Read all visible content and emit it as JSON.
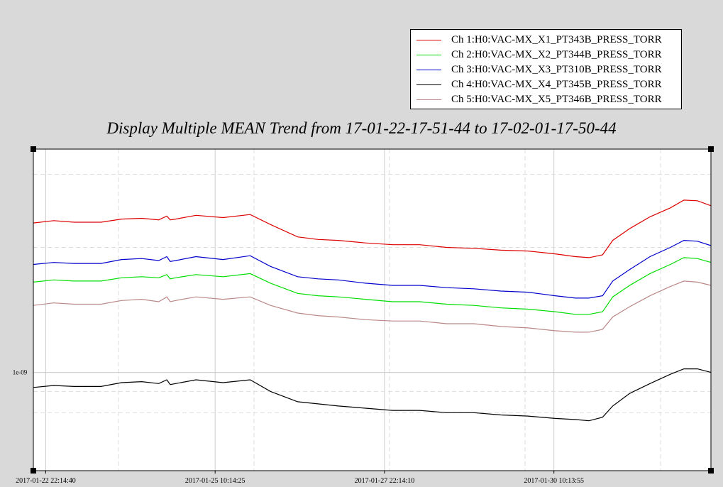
{
  "chart_data": {
    "type": "line",
    "title": "Display Multiple MEAN Trend from 17-01-22-17-51-44 to 17-02-01-17-50-44",
    "xlabel": "",
    "ylabel": "",
    "x_range": [
      "2017-01-22 17:51:44",
      "2017-02-01 17:50:44"
    ],
    "x_ticks": [
      "2017-01-22 22:14:40",
      "2017-01-25 10:14:25",
      "2017-01-27 22:14:10",
      "2017-01-30 10:13:55"
    ],
    "y_scale": "log",
    "y_ticks": [
      "1e-09"
    ],
    "y_range": [
      5.8e-10,
      3.45e-09
    ],
    "grid": true,
    "legend_position": "top-right",
    "series": [
      {
        "name": "Ch 1:H0:VAC-MX_X1_PT343B_PRESS_TORR",
        "color": "#dd0000",
        "values": [
          [
            0.0,
            2.29e-09
          ],
          [
            0.3,
            2.32e-09
          ],
          [
            0.6,
            2.3e-09
          ],
          [
            1.0,
            2.3e-09
          ],
          [
            1.3,
            2.34e-09
          ],
          [
            1.6,
            2.35e-09
          ],
          [
            1.85,
            2.33e-09
          ],
          [
            1.97,
            2.38e-09
          ],
          [
            2.02,
            2.33e-09
          ],
          [
            2.1,
            2.34e-09
          ],
          [
            2.4,
            2.39e-09
          ],
          [
            2.8,
            2.36e-09
          ],
          [
            3.2,
            2.4e-09
          ],
          [
            3.5,
            2.27e-09
          ],
          [
            3.9,
            2.12e-09
          ],
          [
            4.2,
            2.09e-09
          ],
          [
            4.5,
            2.08e-09
          ],
          [
            4.9,
            2.05e-09
          ],
          [
            5.3,
            2.03e-09
          ],
          [
            5.7,
            2.03e-09
          ],
          [
            6.1,
            2e-09
          ],
          [
            6.5,
            1.99e-09
          ],
          [
            6.9,
            1.97e-09
          ],
          [
            7.3,
            1.96e-09
          ],
          [
            7.7,
            1.93e-09
          ],
          [
            8.0,
            1.9e-09
          ],
          [
            8.2,
            1.89e-09
          ],
          [
            8.4,
            1.92e-09
          ],
          [
            8.55,
            2.08e-09
          ],
          [
            8.8,
            2.22e-09
          ],
          [
            9.1,
            2.37e-09
          ],
          [
            9.4,
            2.49e-09
          ],
          [
            9.6,
            2.6e-09
          ],
          [
            9.8,
            2.59e-09
          ],
          [
            10.0,
            2.52e-09
          ]
        ]
      },
      {
        "name": "Ch 2:H0:VAC-MX_X2_PT344B_PRESS_TORR",
        "color": "#00dd00",
        "values": [
          [
            0.0,
            1.65e-09
          ],
          [
            0.3,
            1.67e-09
          ],
          [
            0.6,
            1.66e-09
          ],
          [
            1.0,
            1.66e-09
          ],
          [
            1.3,
            1.69e-09
          ],
          [
            1.6,
            1.7e-09
          ],
          [
            1.85,
            1.69e-09
          ],
          [
            1.97,
            1.72e-09
          ],
          [
            2.02,
            1.68e-09
          ],
          [
            2.1,
            1.69e-09
          ],
          [
            2.4,
            1.72e-09
          ],
          [
            2.8,
            1.7e-09
          ],
          [
            3.2,
            1.73e-09
          ],
          [
            3.5,
            1.64e-09
          ],
          [
            3.9,
            1.55e-09
          ],
          [
            4.2,
            1.53e-09
          ],
          [
            4.5,
            1.52e-09
          ],
          [
            4.9,
            1.5e-09
          ],
          [
            5.3,
            1.48e-09
          ],
          [
            5.7,
            1.48e-09
          ],
          [
            6.1,
            1.46e-09
          ],
          [
            6.5,
            1.45e-09
          ],
          [
            6.9,
            1.43e-09
          ],
          [
            7.3,
            1.42e-09
          ],
          [
            7.7,
            1.4e-09
          ],
          [
            8.0,
            1.38e-09
          ],
          [
            8.2,
            1.38e-09
          ],
          [
            8.4,
            1.4e-09
          ],
          [
            8.55,
            1.52e-09
          ],
          [
            8.8,
            1.62e-09
          ],
          [
            9.1,
            1.73e-09
          ],
          [
            9.4,
            1.82e-09
          ],
          [
            9.6,
            1.89e-09
          ],
          [
            9.8,
            1.88e-09
          ],
          [
            10.0,
            1.84e-09
          ]
        ]
      },
      {
        "name": "Ch 3:H0:VAC-MX_X3_PT310B_PRESS_TORR",
        "color": "#0000cc",
        "values": [
          [
            0.0,
            1.82e-09
          ],
          [
            0.3,
            1.84e-09
          ],
          [
            0.6,
            1.83e-09
          ],
          [
            1.0,
            1.83e-09
          ],
          [
            1.3,
            1.87e-09
          ],
          [
            1.6,
            1.88e-09
          ],
          [
            1.85,
            1.86e-09
          ],
          [
            1.97,
            1.9e-09
          ],
          [
            2.02,
            1.85e-09
          ],
          [
            2.1,
            1.86e-09
          ],
          [
            2.4,
            1.9e-09
          ],
          [
            2.8,
            1.87e-09
          ],
          [
            3.2,
            1.91e-09
          ],
          [
            3.5,
            1.8e-09
          ],
          [
            3.9,
            1.7e-09
          ],
          [
            4.2,
            1.68e-09
          ],
          [
            4.5,
            1.67e-09
          ],
          [
            4.9,
            1.64e-09
          ],
          [
            5.3,
            1.62e-09
          ],
          [
            5.7,
            1.62e-09
          ],
          [
            6.1,
            1.6e-09
          ],
          [
            6.5,
            1.59e-09
          ],
          [
            6.9,
            1.57e-09
          ],
          [
            7.3,
            1.56e-09
          ],
          [
            7.7,
            1.53e-09
          ],
          [
            8.0,
            1.51e-09
          ],
          [
            8.2,
            1.51e-09
          ],
          [
            8.4,
            1.53e-09
          ],
          [
            8.55,
            1.66e-09
          ],
          [
            8.8,
            1.77e-09
          ],
          [
            9.1,
            1.9e-09
          ],
          [
            9.4,
            2e-09
          ],
          [
            9.6,
            2.08e-09
          ],
          [
            9.8,
            2.07e-09
          ],
          [
            10.0,
            2.02e-09
          ]
        ]
      },
      {
        "name": "Ch 4:H0:VAC-MX_X4_PT345B_PRESS_TORR",
        "color": "#000000",
        "values": [
          [
            0.0,
            9.2e-10
          ],
          [
            0.3,
            9.3e-10
          ],
          [
            0.6,
            9.25e-10
          ],
          [
            1.0,
            9.25e-10
          ],
          [
            1.3,
            9.45e-10
          ],
          [
            1.6,
            9.5e-10
          ],
          [
            1.85,
            9.4e-10
          ],
          [
            1.97,
            9.6e-10
          ],
          [
            2.02,
            9.35e-10
          ],
          [
            2.1,
            9.4e-10
          ],
          [
            2.4,
            9.6e-10
          ],
          [
            2.8,
            9.45e-10
          ],
          [
            3.2,
            9.6e-10
          ],
          [
            3.5,
            9e-10
          ],
          [
            3.9,
            8.5e-10
          ],
          [
            4.2,
            8.4e-10
          ],
          [
            4.5,
            8.3e-10
          ],
          [
            4.9,
            8.2e-10
          ],
          [
            5.3,
            8.1e-10
          ],
          [
            5.7,
            8.1e-10
          ],
          [
            6.1,
            8e-10
          ],
          [
            6.5,
            8e-10
          ],
          [
            6.9,
            7.9e-10
          ],
          [
            7.3,
            7.85e-10
          ],
          [
            7.7,
            7.75e-10
          ],
          [
            8.0,
            7.7e-10
          ],
          [
            8.2,
            7.65e-10
          ],
          [
            8.4,
            7.8e-10
          ],
          [
            8.55,
            8.3e-10
          ],
          [
            8.8,
            8.9e-10
          ],
          [
            9.1,
            9.4e-10
          ],
          [
            9.4,
            9.9e-10
          ],
          [
            9.6,
            1.02e-09
          ],
          [
            9.8,
            1.02e-09
          ],
          [
            10.0,
            1e-09
          ]
        ]
      },
      {
        "name": "Ch 5:H0:VAC-MX_X5_PT346B_PRESS_TORR",
        "color": "#bb8888",
        "values": [
          [
            0.0,
            1.45e-09
          ],
          [
            0.3,
            1.47e-09
          ],
          [
            0.6,
            1.46e-09
          ],
          [
            1.0,
            1.46e-09
          ],
          [
            1.3,
            1.49e-09
          ],
          [
            1.6,
            1.5e-09
          ],
          [
            1.85,
            1.48e-09
          ],
          [
            1.97,
            1.52e-09
          ],
          [
            2.02,
            1.48e-09
          ],
          [
            2.1,
            1.49e-09
          ],
          [
            2.4,
            1.52e-09
          ],
          [
            2.8,
            1.5e-09
          ],
          [
            3.2,
            1.52e-09
          ],
          [
            3.5,
            1.45e-09
          ],
          [
            3.9,
            1.39e-09
          ],
          [
            4.2,
            1.37e-09
          ],
          [
            4.5,
            1.36e-09
          ],
          [
            4.9,
            1.34e-09
          ],
          [
            5.3,
            1.33e-09
          ],
          [
            5.7,
            1.33e-09
          ],
          [
            6.1,
            1.31e-09
          ],
          [
            6.5,
            1.31e-09
          ],
          [
            6.9,
            1.29e-09
          ],
          [
            7.3,
            1.28e-09
          ],
          [
            7.7,
            1.26e-09
          ],
          [
            8.0,
            1.25e-09
          ],
          [
            8.2,
            1.25e-09
          ],
          [
            8.4,
            1.27e-09
          ],
          [
            8.55,
            1.36e-09
          ],
          [
            8.8,
            1.44e-09
          ],
          [
            9.1,
            1.53e-09
          ],
          [
            9.4,
            1.61e-09
          ],
          [
            9.6,
            1.66e-09
          ],
          [
            9.8,
            1.65e-09
          ],
          [
            10.0,
            1.62e-09
          ]
        ]
      }
    ]
  }
}
